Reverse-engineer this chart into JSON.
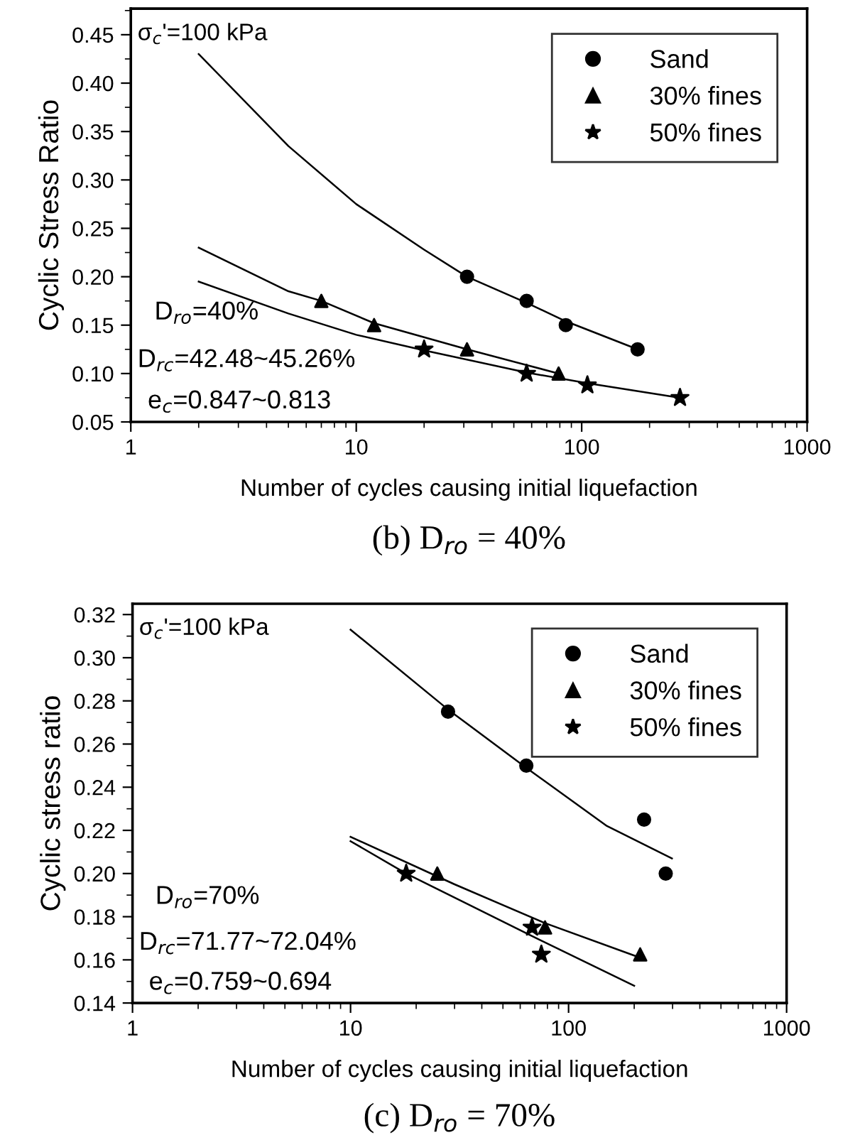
{
  "chart_data": [
    {
      "type": "scatter",
      "title": "(b) D$_{ro}$ = 40%",
      "xlabel": "Number of cycles causing initial liquefaction",
      "ylabel": "Cyclic Stress Ratio",
      "log": "x",
      "xlim": [
        1,
        1000
      ],
      "xticks": [
        1,
        10,
        100,
        1000
      ],
      "ylim": [
        0.05,
        0.477
      ],
      "yticks": [
        0.05,
        {
          "value": 0.1,
          "label": "0.10"
        },
        0.15,
        {
          "value": 0.2,
          "label": "0.20"
        },
        0.25,
        {
          "value": 0.3,
          "label": "0.30"
        },
        0.35,
        {
          "value": 0.4,
          "label": "0.40"
        },
        0.45
      ],
      "grid": false,
      "legend": "top right",
      "annotations": [
        "σ$_{c}$'=100 kPa",
        "D$_{ro}$=40%",
        "D$_{rc}$=42.48~45.26%",
        "e$_{c}$=0.847~0.813"
      ],
      "series": [
        {
          "name": "Sand",
          "marker": "circle",
          "color": "#000000",
          "x": [
            31,
            57,
            85,
            177
          ],
          "values": [
            0.2,
            0.175,
            0.15,
            0.125
          ]
        },
        {
          "name": "30% fines",
          "marker": "triangle",
          "color": "#000000",
          "x": [
            7,
            12,
            31,
            79
          ],
          "values": [
            0.175,
            0.15,
            0.125,
            0.1
          ]
        },
        {
          "name": "50% fines",
          "marker": "star",
          "color": "#000000",
          "x": [
            20,
            57,
            106,
            273
          ],
          "values": [
            0.125,
            0.1,
            0.088,
            0.075
          ]
        },
        {
          "type": "line",
          "marker": "none",
          "color": "#000000",
          "x": [
            2,
            5,
            10,
            20,
            31,
            57,
            85,
            177
          ],
          "values": [
            0.43,
            0.335,
            0.275,
            0.228,
            0.2,
            0.173,
            0.154,
            0.125
          ]
        },
        {
          "type": "line",
          "marker": "none",
          "color": "#000000",
          "x": [
            2,
            5,
            7,
            12,
            31,
            79
          ],
          "values": [
            0.23,
            0.185,
            0.175,
            0.152,
            0.125,
            0.1
          ]
        },
        {
          "type": "line",
          "marker": "none",
          "color": "#000000",
          "x": [
            2,
            5,
            10,
            20,
            57,
            106,
            273
          ],
          "values": [
            0.195,
            0.162,
            0.14,
            0.124,
            0.101,
            0.09,
            0.075
          ]
        }
      ]
    },
    {
      "type": "scatter",
      "title": "(c) D$_{ro}$ = 70%",
      "xlabel": "Number of cycles causing initial liquefaction",
      "ylabel": "Cyclic stress ratio",
      "log": "x",
      "xlim": [
        1,
        1000
      ],
      "xticks": [
        1,
        10,
        100,
        1000
      ],
      "ylim": [
        0.14,
        0.325
      ],
      "yticks": [
        0.14,
        0.16,
        0.18,
        {
          "value": 0.2,
          "label": "0.20"
        },
        0.22,
        0.24,
        0.26,
        0.28,
        {
          "value": 0.3,
          "label": "0.30"
        },
        0.32
      ],
      "grid": false,
      "legend": "top right",
      "annotations": [
        "σ$_{c}$'=100 kPa",
        "D$_{ro}$=70%",
        "D$_{rc}$=71.77~72.04%",
        "e$_{c}$=0.759~0.694"
      ],
      "series": [
        {
          "name": "Sand",
          "marker": "circle",
          "color": "#000000",
          "x": [
            28,
            64,
            222,
            279
          ],
          "values": [
            0.275,
            0.25,
            0.225,
            0.2
          ]
        },
        {
          "name": "30% fines",
          "marker": "triangle",
          "color": "#000000",
          "x": [
            25,
            78,
            213
          ],
          "values": [
            0.2,
            0.175,
            0.1625
          ]
        },
        {
          "name": "50% fines",
          "marker": "star",
          "color": "#000000",
          "x": [
            18,
            68,
            75
          ],
          "values": [
            0.2,
            0.175,
            0.1625
          ]
        },
        {
          "type": "line",
          "marker": "none",
          "color": "#000000",
          "x": [
            10,
            28,
            64,
            150,
            298
          ],
          "values": [
            0.313,
            0.276,
            0.249,
            0.222,
            0.207
          ]
        },
        {
          "type": "line",
          "marker": "none",
          "color": "#000000",
          "x": [
            10,
            30,
            78,
            213
          ],
          "values": [
            0.217,
            0.195,
            0.177,
            0.161
          ]
        },
        {
          "type": "line",
          "marker": "none",
          "color": "#000000",
          "x": [
            10,
            18,
            68,
            200
          ],
          "values": [
            0.215,
            0.2,
            0.171,
            0.148
          ]
        }
      ]
    }
  ]
}
